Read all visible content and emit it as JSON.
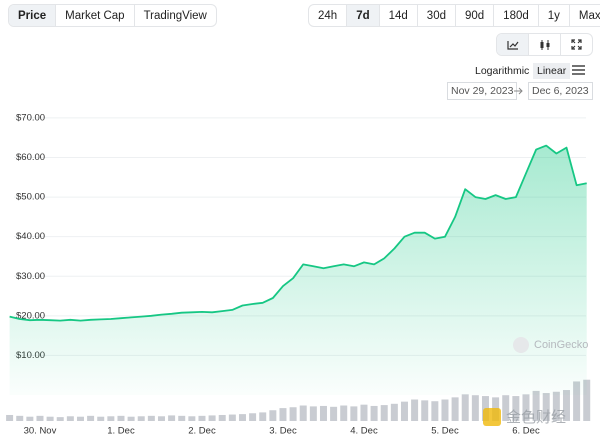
{
  "toolbar": {
    "tabs": [
      "Price",
      "Market Cap",
      "TradingView"
    ],
    "ranges": [
      "24h",
      "7d",
      "14d",
      "30d",
      "90d",
      "180d",
      "1y",
      "Max"
    ],
    "scales": [
      "Logarithmic",
      "Linear"
    ],
    "date_from": "Nov 29, 2023",
    "date_to": "Dec 6, 2023"
  },
  "chart_data": {
    "type": "line",
    "color": "#16c784",
    "grid": true,
    "watermark": "CoinGecko",
    "source_watermark": "金色财经",
    "categories": [
      null,
      null,
      null,
      "30. Nov",
      null,
      null,
      null,
      null,
      null,
      null,
      null,
      "1. Dec",
      null,
      null,
      null,
      null,
      null,
      null,
      null,
      "2. Dec",
      null,
      null,
      null,
      null,
      null,
      null,
      null,
      "3. Dec",
      null,
      null,
      null,
      null,
      null,
      null,
      null,
      "4. Dec",
      null,
      null,
      null,
      null,
      null,
      null,
      null,
      "5. Dec",
      null,
      null,
      null,
      null,
      null,
      null,
      null,
      "6. Dec",
      null,
      null,
      null,
      null,
      null,
      null
    ],
    "values": [
      19.8,
      19.2,
      18.9,
      19.0,
      18.9,
      18.8,
      19.0,
      18.8,
      19.0,
      19.1,
      19.2,
      19.4,
      19.6,
      19.8,
      20.0,
      20.3,
      20.5,
      20.8,
      20.9,
      21.0,
      20.9,
      21.2,
      21.5,
      22.6,
      23.0,
      23.3,
      24.5,
      27.5,
      29.5,
      33.0,
      32.5,
      32.0,
      32.5,
      33.0,
      32.5,
      33.5,
      33.0,
      34.5,
      37.0,
      40.0,
      41.0,
      41.0,
      39.5,
      40.0,
      45.0,
      52.0,
      50.0,
      49.5,
      50.5,
      49.5,
      50.0,
      56.0,
      62.0,
      63.0,
      61.0,
      62.5,
      53.0,
      53.5
    ],
    "ylim": [
      0,
      72.5
    ],
    "yticks": [
      {
        "value": 10,
        "label": "$10.00"
      },
      {
        "value": 20,
        "label": "$20.00"
      },
      {
        "value": 30,
        "label": "$30.00"
      },
      {
        "value": 40,
        "label": "$40.00"
      },
      {
        "value": 50,
        "label": "$50.00"
      },
      {
        "value": 60,
        "label": "$60.00"
      },
      {
        "value": 70,
        "label": "$70.00"
      }
    ],
    "volume_color": "#c9ccd2",
    "volumes": [
      14,
      12,
      10,
      12,
      10,
      9,
      11,
      10,
      12,
      10,
      11,
      12,
      10,
      11,
      12,
      11,
      13,
      12,
      11,
      12,
      13,
      14,
      15,
      16,
      18,
      20,
      25,
      30,
      32,
      36,
      34,
      35,
      33,
      36,
      34,
      38,
      35,
      37,
      40,
      45,
      50,
      48,
      46,
      50,
      55,
      62,
      60,
      58,
      55,
      60,
      58,
      62,
      70,
      65,
      68,
      72,
      92,
      96
    ],
    "y2lim": [
      0,
      100
    ]
  }
}
